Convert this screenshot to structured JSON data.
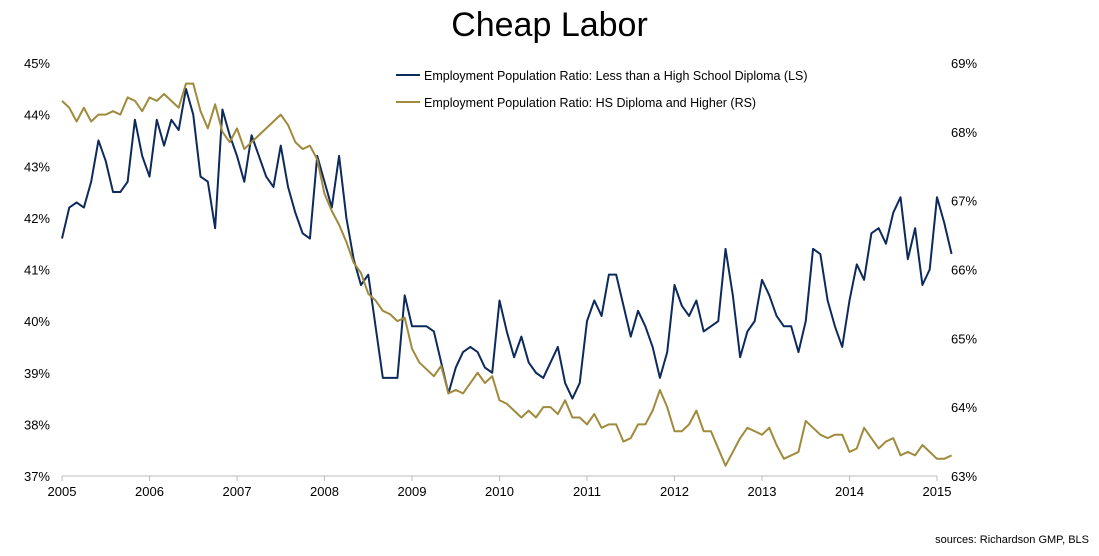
{
  "chart_data": {
    "type": "line",
    "title": "Cheap Labor",
    "source": "sources: Richardson GMP, BLS",
    "x_ticks": [
      "2005",
      "2006",
      "2007",
      "2008",
      "2009",
      "2010",
      "2011",
      "2012",
      "2013",
      "2014",
      "2015"
    ],
    "xlim": [
      2005,
      2015
    ],
    "left_axis": {
      "ylim": [
        37,
        45
      ],
      "ticks": [
        "37%",
        "38%",
        "39%",
        "40%",
        "41%",
        "42%",
        "43%",
        "44%",
        "45%"
      ]
    },
    "right_axis": {
      "ylim": [
        63,
        69
      ],
      "ticks": [
        "63%",
        "64%",
        "65%",
        "66%",
        "67%",
        "68%",
        "69%"
      ]
    },
    "grid": false,
    "legend_position": "top-center",
    "series": [
      {
        "name": "Employment Population Ratio: Less than a High School Diploma (LS)",
        "axis": "left",
        "color": "#0d2a5c",
        "start_year": 2005,
        "step_months": 1,
        "values": [
          41.6,
          42.2,
          42.3,
          42.2,
          42.7,
          43.5,
          43.1,
          42.5,
          42.5,
          42.7,
          43.9,
          43.2,
          42.8,
          43.9,
          43.4,
          43.9,
          43.7,
          44.5,
          44.0,
          42.8,
          42.7,
          41.8,
          44.1,
          43.6,
          43.2,
          42.7,
          43.6,
          43.2,
          42.8,
          42.6,
          43.4,
          42.6,
          42.1,
          41.7,
          41.6,
          43.2,
          42.7,
          42.2,
          43.2,
          42.0,
          41.2,
          40.7,
          40.9,
          39.9,
          38.9,
          38.9,
          38.9,
          40.5,
          39.9,
          39.9,
          39.9,
          39.8,
          39.2,
          38.6,
          39.1,
          39.4,
          39.5,
          39.4,
          39.1,
          39.0,
          40.4,
          39.8,
          39.3,
          39.7,
          39.2,
          39.0,
          38.9,
          39.2,
          39.5,
          38.8,
          38.5,
          38.8,
          40.0,
          40.4,
          40.1,
          40.9,
          40.9,
          40.3,
          39.7,
          40.2,
          39.9,
          39.5,
          38.9,
          39.4,
          40.7,
          40.3,
          40.1,
          40.4,
          39.8,
          39.9,
          40.0,
          41.4,
          40.5,
          39.3,
          39.8,
          40.0,
          40.8,
          40.5,
          40.1,
          39.9,
          39.9,
          39.4,
          40.0,
          41.4,
          41.3,
          40.4,
          39.9,
          39.5,
          40.4,
          41.1,
          40.8,
          41.7,
          41.8,
          41.5,
          42.1,
          42.4,
          41.2,
          41.8,
          40.7,
          41.0,
          42.4,
          41.9,
          41.3
        ]
      },
      {
        "name": "Employment Population Ratio: HS Diploma and Higher (RS)",
        "axis": "right",
        "color": "#a08a3c",
        "start_year": 2005,
        "step_months": 1,
        "values": [
          68.45,
          68.35,
          68.15,
          68.35,
          68.15,
          68.25,
          68.25,
          68.3,
          68.25,
          68.5,
          68.45,
          68.3,
          68.5,
          68.45,
          68.55,
          68.45,
          68.35,
          68.7,
          68.7,
          68.3,
          68.05,
          68.4,
          68.0,
          67.85,
          68.05,
          67.75,
          67.85,
          67.95,
          68.05,
          68.15,
          68.25,
          68.1,
          67.85,
          67.75,
          67.8,
          67.6,
          67.1,
          66.85,
          66.65,
          66.4,
          66.1,
          65.95,
          65.65,
          65.55,
          65.4,
          65.35,
          65.25,
          65.3,
          64.85,
          64.65,
          64.55,
          64.45,
          64.6,
          64.2,
          64.25,
          64.2,
          64.35,
          64.5,
          64.35,
          64.45,
          64.1,
          64.05,
          63.95,
          63.85,
          63.95,
          63.85,
          64.0,
          64.0,
          63.9,
          64.1,
          63.85,
          63.85,
          63.75,
          63.9,
          63.7,
          63.75,
          63.75,
          63.5,
          63.55,
          63.75,
          63.75,
          63.95,
          64.25,
          64.0,
          63.65,
          63.65,
          63.75,
          63.95,
          63.65,
          63.65,
          63.4,
          63.15,
          63.35,
          63.55,
          63.7,
          63.65,
          63.6,
          63.7,
          63.45,
          63.25,
          63.3,
          63.35,
          63.8,
          63.7,
          63.6,
          63.55,
          63.6,
          63.6,
          63.35,
          63.4,
          63.7,
          63.55,
          63.4,
          63.5,
          63.55,
          63.3,
          63.35,
          63.3,
          63.45,
          63.35,
          63.25,
          63.25,
          63.3
        ]
      }
    ]
  }
}
